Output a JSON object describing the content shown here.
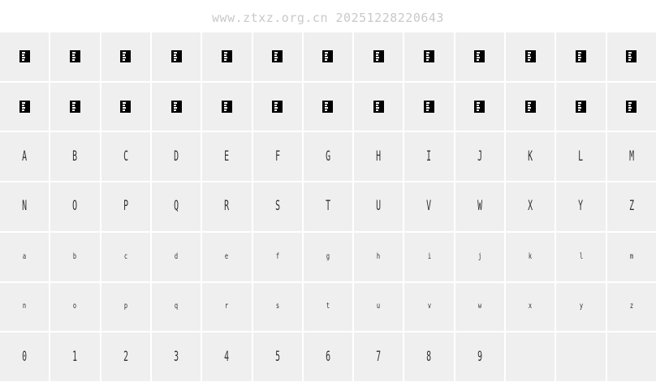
{
  "watermark": {
    "text": "www.ztxz.org.cn 20251228220643",
    "color": "#c9c9c9"
  },
  "palette": {
    "page_bg": "#ffffff",
    "cell_bg": "#efefef",
    "grid_line": "#ffffff",
    "glyph_color": "#303030",
    "notdef_bg": "#000000",
    "notdef_marks": "#ffffff"
  },
  "grid": {
    "columns": 13,
    "row_count": 7,
    "rows": [
      {
        "name": "missing-glyph-row-1",
        "small": false,
        "cells": [
          null,
          null,
          null,
          null,
          null,
          null,
          null,
          null,
          null,
          null,
          null,
          null,
          null
        ]
      },
      {
        "name": "missing-glyph-row-2",
        "small": false,
        "cells": [
          null,
          null,
          null,
          null,
          null,
          null,
          null,
          null,
          null,
          null,
          null,
          null,
          null
        ]
      },
      {
        "name": "uppercase-a-m",
        "small": false,
        "cells": [
          "A",
          "B",
          "C",
          "D",
          "E",
          "F",
          "G",
          "H",
          "I",
          "J",
          "K",
          "L",
          "M"
        ]
      },
      {
        "name": "uppercase-n-z",
        "small": false,
        "cells": [
          "N",
          "O",
          "P",
          "Q",
          "R",
          "S",
          "T",
          "U",
          "V",
          "W",
          "X",
          "Y",
          "Z"
        ]
      },
      {
        "name": "lowercase-a-m",
        "small": true,
        "cells": [
          "a",
          "b",
          "c",
          "d",
          "e",
          "f",
          "g",
          "h",
          "i",
          "j",
          "k",
          "l",
          "m"
        ]
      },
      {
        "name": "lowercase-n-z",
        "small": true,
        "cells": [
          "n",
          "o",
          "p",
          "q",
          "r",
          "s",
          "t",
          "u",
          "v",
          "w",
          "x",
          "y",
          "z"
        ]
      },
      {
        "name": "digits-row",
        "small": false,
        "cells": [
          "0",
          "1",
          "2",
          "3",
          "4",
          "5",
          "6",
          "7",
          "8",
          "9",
          "",
          "",
          ""
        ]
      }
    ]
  }
}
